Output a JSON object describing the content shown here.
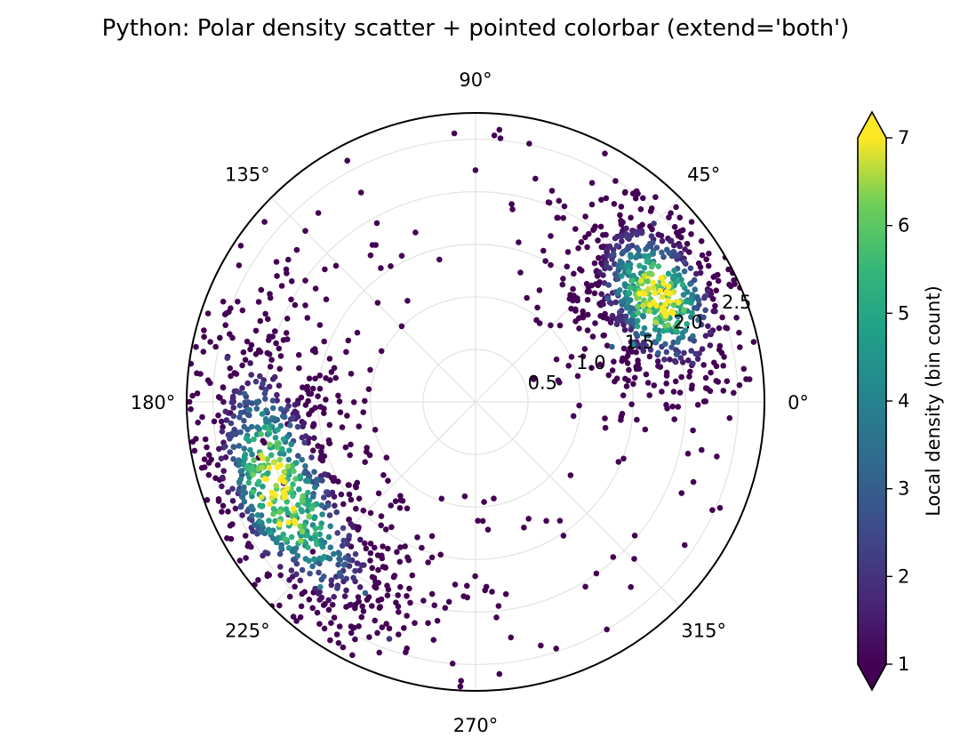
{
  "chart_data": {
    "type": "scatter",
    "projection": "polar",
    "title": "Python: Polar density scatter + pointed colorbar (extend='both')",
    "theta_ticks": [
      "0°",
      "45°",
      "90°",
      "135°",
      "180°",
      "225°",
      "270°",
      "315°"
    ],
    "theta_tick_degrees": [
      0,
      45,
      90,
      135,
      180,
      225,
      270,
      315
    ],
    "r_ticks": [
      "0.5",
      "1.0",
      "1.5",
      "2.0",
      "2.5"
    ],
    "r_tick_values": [
      0.5,
      1.0,
      1.5,
      2.0,
      2.5
    ],
    "rlim": [
      0,
      2.75
    ],
    "grid": true,
    "colormap": "viridis",
    "colorbar": {
      "label": "Local density (bin count)",
      "ticks": [
        "1",
        "2",
        "3",
        "4",
        "5",
        "6",
        "7"
      ],
      "range": [
        1,
        7
      ],
      "extend": "both",
      "placement": "right"
    },
    "clusters": [
      {
        "theta_deg": 30,
        "r": 2.0,
        "spread_theta_deg": 15,
        "spread_r": 0.35,
        "count": 700,
        "peak_density": 7
      },
      {
        "theta_deg": 205,
        "r": 2.05,
        "spread_theta_deg": 25,
        "spread_r": 0.35,
        "count": 900,
        "peak_density": 7
      }
    ],
    "points": [
      [
        28,
        1.95,
        7
      ],
      [
        31,
        2.05,
        7
      ],
      [
        33,
        1.9,
        7
      ],
      [
        26,
        2.1,
        6
      ],
      [
        35,
        2.0,
        6
      ],
      [
        25,
        1.7,
        5
      ],
      [
        40,
        2.2,
        4
      ],
      [
        20,
        1.6,
        4
      ],
      [
        45,
        2.4,
        2
      ],
      [
        15,
        1.8,
        3
      ],
      [
        10,
        2.1,
        2
      ],
      [
        55,
        2.3,
        1
      ],
      [
        60,
        1.9,
        1
      ],
      [
        5,
        2.3,
        1
      ],
      [
        -5,
        1.9,
        1
      ],
      [
        -12,
        2.2,
        1
      ],
      [
        75,
        2.2,
        1
      ],
      [
        85,
        2.6,
        1
      ],
      [
        22,
        1.4,
        3
      ],
      [
        38,
        1.6,
        3
      ],
      [
        198,
        1.95,
        7
      ],
      [
        205,
        2.1,
        7
      ],
      [
        212,
        2.2,
        7
      ],
      [
        188,
        1.9,
        5
      ],
      [
        220,
        2.0,
        5
      ],
      [
        178,
        2.2,
        3
      ],
      [
        230,
        2.3,
        4
      ],
      [
        240,
        2.1,
        3
      ],
      [
        250,
        2.4,
        2
      ],
      [
        260,
        2.3,
        1
      ],
      [
        170,
        2.4,
        2
      ],
      [
        160,
        2.5,
        1
      ],
      [
        150,
        2.6,
        1
      ],
      [
        145,
        2.2,
        1
      ],
      [
        265,
        2.5,
        1
      ],
      [
        275,
        2.6,
        1
      ],
      [
        285,
        2.4,
        1
      ],
      [
        300,
        2.5,
        1
      ],
      [
        310,
        2.3,
        1
      ],
      [
        118,
        2.6,
        1
      ]
    ]
  }
}
